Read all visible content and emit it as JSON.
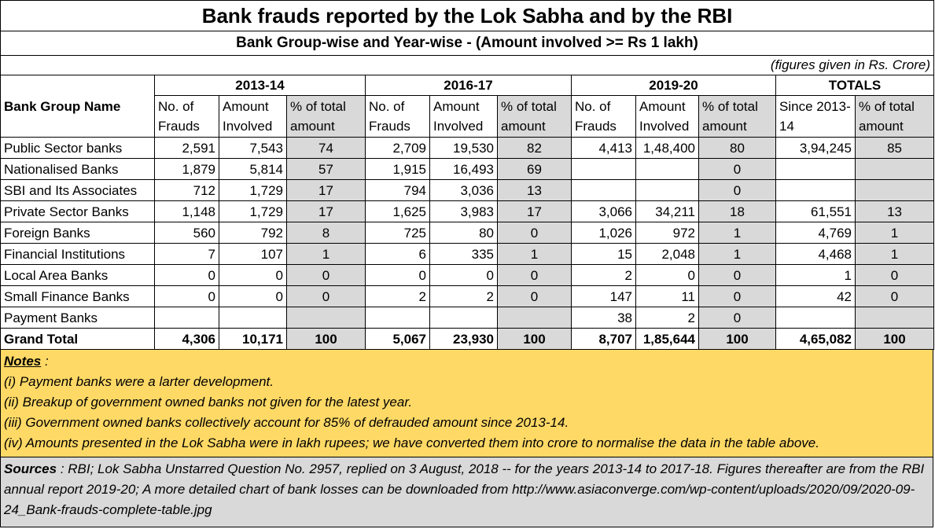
{
  "title": "Bank frauds reported by the Lok Sabha and by the RBI",
  "subtitle": "Bank Group-wise and Year-wise - (Amount involved >= Rs 1 lakh)",
  "units_note": "(figures given in Rs. Crore)",
  "years": [
    "2013-14",
    "2016-17",
    "2019-20",
    "TOTALS"
  ],
  "headers": {
    "bank_group": "Bank Group Name",
    "frauds": "No. of Frauds",
    "amount": "Amount Involved",
    "pct": "% of total amount",
    "since": "Since 2013-14",
    "pct_total": "% of total amount"
  },
  "rows": [
    {
      "name": "Public Sector banks",
      "v": [
        "2,591",
        "7,543",
        "74",
        "2,709",
        "19,530",
        "82",
        "4,413",
        "1,48,400",
        "80",
        "3,94,245",
        "85"
      ]
    },
    {
      "name": "Nationalised Banks",
      "v": [
        "1,879",
        "5,814",
        "57",
        "1,915",
        "16,493",
        "69",
        "",
        "",
        "0",
        "",
        ""
      ]
    },
    {
      "name": "SBI and Its Associates",
      "v": [
        "712",
        "1,729",
        "17",
        "794",
        "3,036",
        "13",
        "",
        "",
        "0",
        "",
        ""
      ]
    },
    {
      "name": "Private Sector Banks",
      "v": [
        "1,148",
        "1,729",
        "17",
        "1,625",
        "3,983",
        "17",
        "3,066",
        "34,211",
        "18",
        "61,551",
        "13"
      ]
    },
    {
      "name": "Foreign Banks",
      "v": [
        "560",
        "792",
        "8",
        "725",
        "80",
        "0",
        "1,026",
        "972",
        "1",
        "4,769",
        "1"
      ]
    },
    {
      "name": "Financial Institutions",
      "v": [
        "7",
        "107",
        "1",
        "6",
        "335",
        "1",
        "15",
        "2,048",
        "1",
        "4,468",
        "1"
      ]
    },
    {
      "name": "Local Area Banks",
      "v": [
        "0",
        "0",
        "0",
        "0",
        "0",
        "0",
        "2",
        "0",
        "0",
        "1",
        "0"
      ]
    },
    {
      "name": "Small Finance Banks",
      "v": [
        "0",
        "0",
        "0",
        "2",
        "2",
        "0",
        "147",
        "11",
        "0",
        "42",
        "0"
      ]
    },
    {
      "name": "Payment Banks",
      "v": [
        "",
        "",
        "",
        "",
        "",
        "",
        "38",
        "2",
        "0",
        "",
        ""
      ]
    }
  ],
  "grand_total": {
    "name": "Grand Total",
    "v": [
      "4,306",
      "10,171",
      "100",
      "5,067",
      "23,930",
      "100",
      "8,707",
      "1,85,644",
      "100",
      "4,65,082",
      "100"
    ]
  },
  "notes": {
    "heading": "Notes",
    "colon": " :",
    "items": [
      "(i) Payment banks were a larter development.",
      "(ii) Breakup of government owned banks not given for the latest year.",
      "(iii) Government owned banks collectively account for 85% of defrauded amount since 2013-14.",
      "(iv) Amounts presented in the Lok Sabha were in lakh rupees; we have converted them into crore to normalise the data in the table above."
    ]
  },
  "sources": {
    "heading": "Sources",
    "text": " : RBI; Lok Sabha Unstarred Question No. 2957, replied on 3 August, 2018  -- for the years  2013-14 to 2017-18.  Figures thereafter are from the RBI annual report 2019-20; A more detailed chart of bank losses can be downloaded from  http://www.asiaconverge.com/wp-content/uploads/2020/09/2020-09-24_Bank-frauds-complete-table.jpg"
  }
}
